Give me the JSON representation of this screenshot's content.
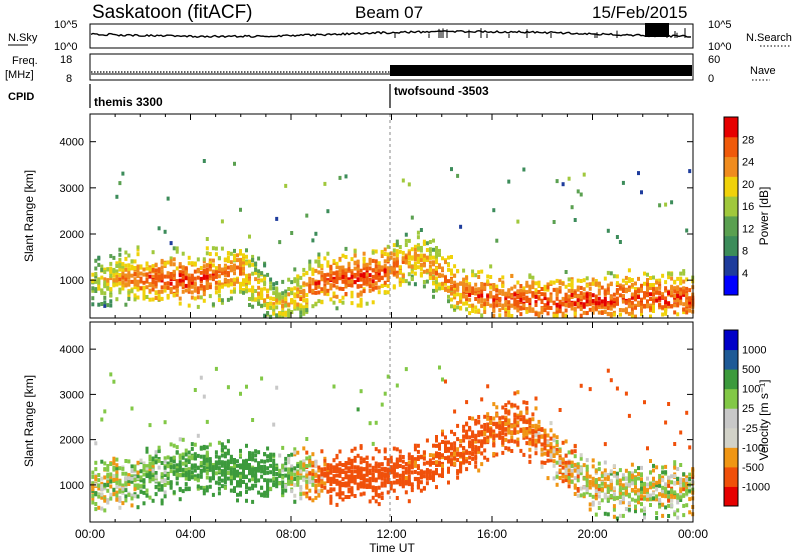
{
  "header": {
    "site": "Saskatoon (fitACF)",
    "beam": "Beam 07",
    "date": "15/Feb/2015"
  },
  "top_panels": {
    "nsky_label": "N.Sky",
    "nsky_ticks": [
      "10^5",
      "10^0"
    ],
    "nsearch_label": "N.Search",
    "nsearch_ticks": [
      "10^5",
      "10^0"
    ],
    "freq_label_1": "Freq.",
    "freq_label_2": "[MHz]",
    "freq_ticks": [
      "18",
      "8"
    ],
    "nave_label": "Nave",
    "nave_ticks": [
      "60",
      "0"
    ],
    "cpid_label": "CPID",
    "cpid_modes": [
      {
        "name": "themis 3300",
        "start_hour": 0
      },
      {
        "name": "twofsound -3503",
        "start_hour": 12
      }
    ]
  },
  "colors": {
    "power": [
      "#0000ff",
      "#1e3c9c",
      "#3c8c5a",
      "#5aa050",
      "#a0c83c",
      "#f0d20a",
      "#f08c1e",
      "#f05a0a",
      "#e60000"
    ],
    "velocity": [
      "#e60000",
      "#f0500a",
      "#f09614",
      "#d2d2c8",
      "#c8c8c8",
      "#82c846",
      "#3c9a3c",
      "#1e5a96",
      "#0000c8"
    ]
  },
  "chart_data": [
    {
      "type": "heatmap",
      "title": "Power",
      "ylabel": "Slant Range [km]",
      "xlabel": "Time UT",
      "xlim_hours": [
        0,
        24
      ],
      "ylim": [
        180,
        4600
      ],
      "x_ticks": [
        "00:00",
        "04:00",
        "08:00",
        "12:00",
        "16:00",
        "20:00",
        "00:00"
      ],
      "y_ticks": [
        1000,
        2000,
        3000,
        4000
      ],
      "colorbar_label": "Power [dB]",
      "colorbar_ticks": [
        "28",
        "24",
        "20",
        "16",
        "12",
        "8",
        "4"
      ],
      "band_features": [
        {
          "hour": 0,
          "range": 1000,
          "value": 18
        },
        {
          "hour": 2,
          "range": 1050,
          "value": 26
        },
        {
          "hour": 4,
          "range": 1000,
          "value": 28
        },
        {
          "hour": 6,
          "range": 1200,
          "value": 24
        },
        {
          "hour": 7.5,
          "range": 400,
          "value": 20
        },
        {
          "hour": 9.2,
          "range": 1000,
          "value": 27
        },
        {
          "hour": 11.3,
          "range": 1100,
          "value": 28
        },
        {
          "hour": 13,
          "range": 1500,
          "value": 22
        },
        {
          "hour": 15,
          "range": 700,
          "value": 26
        },
        {
          "hour": 18,
          "range": 500,
          "value": 28
        },
        {
          "hour": 22,
          "range": 600,
          "value": 27
        }
      ]
    },
    {
      "type": "heatmap",
      "title": "Velocity",
      "ylabel": "Slant Range [km]",
      "xlabel": "Time UT",
      "xlim_hours": [
        0,
        24
      ],
      "ylim": [
        180,
        4600
      ],
      "x_ticks": [
        "00:00",
        "04:00",
        "08:00",
        "12:00",
        "16:00",
        "20:00",
        "00:00"
      ],
      "y_ticks": [
        1000,
        2000,
        3000,
        4000
      ],
      "colorbar_label": "Velocity [m s⁻¹]",
      "colorbar_ticks": [
        "1000",
        "500",
        "100",
        "25",
        "-25",
        "-100",
        "-500",
        "-1000"
      ],
      "band_features": [
        {
          "hour": 1,
          "range": 1000,
          "value": 10
        },
        {
          "hour": 4,
          "range": 1400,
          "value": 150
        },
        {
          "hour": 7,
          "range": 1200,
          "value": 200
        },
        {
          "hour": 10,
          "range": 1200,
          "value": -250
        },
        {
          "hour": 13,
          "range": 1300,
          "value": -200
        },
        {
          "hour": 17,
          "range": 2400,
          "value": -150
        },
        {
          "hour": 20,
          "range": 900,
          "value": 5
        }
      ]
    }
  ]
}
